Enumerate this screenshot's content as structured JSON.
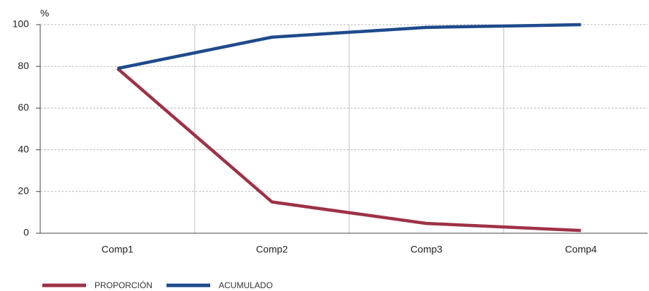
{
  "chart_data": {
    "type": "line",
    "ylabel": "%",
    "categories": [
      "Comp1",
      "Comp2",
      "Comp3",
      "Comp4"
    ],
    "series": [
      {
        "name": "PROPORCIÓN",
        "color": "#9e3246",
        "values": [
          79,
          15,
          4.7,
          1.3
        ]
      },
      {
        "name": "ACUMULADO",
        "color": "#1f4a8c",
        "values": [
          79,
          94,
          98.7,
          100
        ]
      }
    ],
    "ylim": [
      0,
      100
    ],
    "yticks": [
      0,
      20,
      40,
      60,
      80,
      100
    ],
    "grid": true
  }
}
